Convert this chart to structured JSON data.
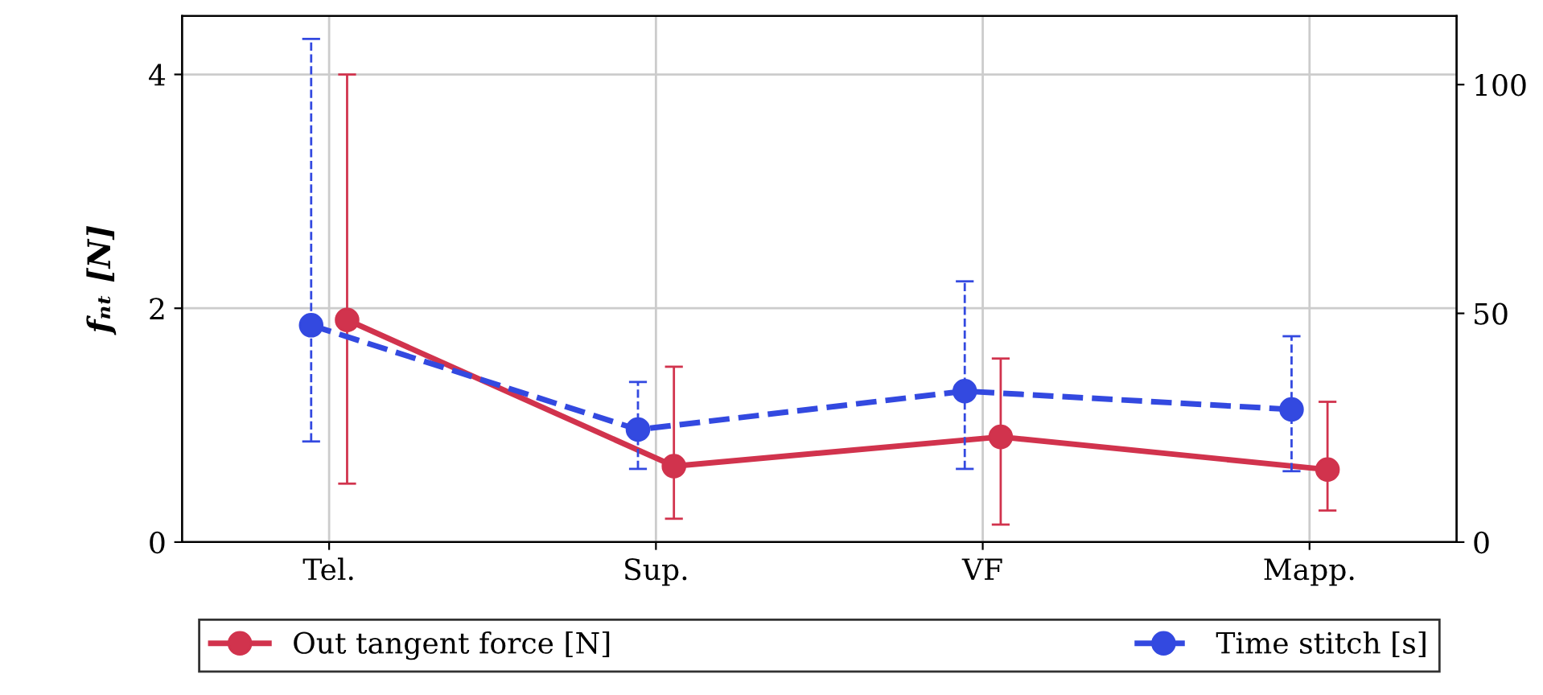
{
  "chart_data": {
    "type": "line",
    "categories": [
      "Tel.",
      "Sup.",
      "VF",
      "Mapp."
    ],
    "ylabel": "fₙₜ [N]",
    "ylim": [
      0,
      4.5
    ],
    "yticks": [
      0,
      2,
      4
    ],
    "y2lim": [
      0,
      115
    ],
    "y2ticks": [
      0,
      50,
      100
    ],
    "grid": true,
    "legend": "bottom",
    "marker": "circle",
    "series": [
      {
        "name": "Out tangent force [N]",
        "color": "#d1334d",
        "line_style": "solid",
        "values": [
          1.9,
          0.65,
          0.9,
          0.62
        ],
        "errors": [
          [
            0.5,
            4.0
          ],
          [
            0.2,
            1.5
          ],
          [
            0.15,
            1.57
          ],
          [
            0.27,
            1.2
          ]
        ]
      },
      {
        "name": "Time stitch [s]",
        "color": "#3349e0",
        "line_style": "dashed",
        "axis": "y2",
        "values": [
          47.4,
          24.6,
          33,
          29
        ],
        "errors": [
          [
            22,
            110
          ],
          [
            16,
            35
          ],
          [
            16,
            57
          ],
          [
            15.5,
            45
          ]
        ]
      }
    ]
  }
}
